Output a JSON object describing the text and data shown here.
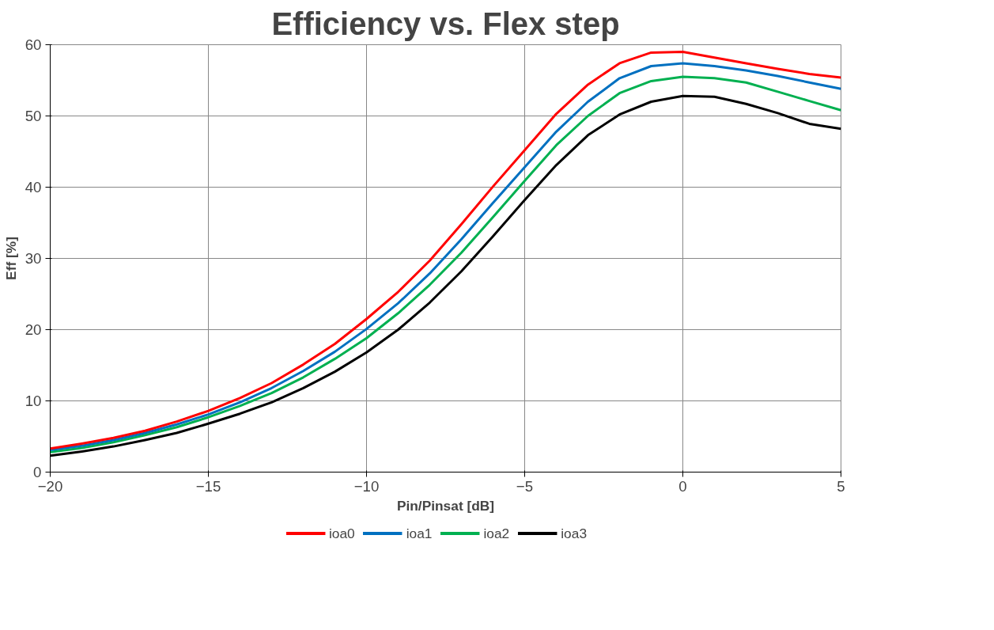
{
  "chart_data": {
    "type": "line",
    "title": "Efficiency vs. Flex step",
    "xlabel": "Pin/Pinsat [dB]",
    "ylabel": "Eff [%]",
    "x": [
      -20,
      -19,
      -18,
      -17,
      -16,
      -15,
      -14,
      -13,
      -12,
      -11,
      -10,
      -9,
      -8,
      -7,
      -6,
      -5,
      -4,
      -3,
      -2,
      -1,
      0,
      1,
      2,
      3,
      4,
      5
    ],
    "series": [
      {
        "name": "ioa0",
        "color": "#ff0000",
        "values": [
          3.3,
          4.0,
          4.8,
          5.8,
          7.1,
          8.6,
          10.4,
          12.5,
          15.1,
          18.0,
          21.5,
          25.3,
          29.7,
          34.8,
          40.1,
          45.2,
          50.3,
          54.4,
          57.4,
          58.9,
          59.0,
          58.2,
          57.4,
          56.6,
          55.9,
          55.4
        ]
      },
      {
        "name": "ioa1",
        "color": "#0070c0",
        "values": [
          3.1,
          3.7,
          4.5,
          5.5,
          6.7,
          8.1,
          9.8,
          11.8,
          14.2,
          16.9,
          20.1,
          23.7,
          27.9,
          32.7,
          37.8,
          42.8,
          47.8,
          52.0,
          55.3,
          57.0,
          57.4,
          57.0,
          56.4,
          55.6,
          54.7,
          53.8
        ]
      },
      {
        "name": "ioa2",
        "color": "#00b050",
        "values": [
          2.8,
          3.4,
          4.2,
          5.2,
          6.3,
          7.7,
          9.3,
          11.1,
          13.3,
          15.9,
          18.8,
          22.3,
          26.3,
          30.8,
          35.8,
          40.9,
          45.9,
          50.0,
          53.2,
          54.9,
          55.5,
          55.3,
          54.7,
          53.4,
          52.1,
          50.8
        ]
      },
      {
        "name": "ioa3",
        "color": "#000000",
        "values": [
          2.3,
          2.9,
          3.6,
          4.5,
          5.5,
          6.8,
          8.2,
          9.8,
          11.8,
          14.1,
          16.8,
          20.0,
          23.8,
          28.2,
          33.1,
          38.2,
          43.1,
          47.3,
          50.2,
          52.0,
          52.8,
          52.7,
          51.7,
          50.4,
          48.9,
          48.2
        ]
      }
    ],
    "xlim": [
      -20,
      5
    ],
    "xticks": [
      -20,
      -15,
      -10,
      -5,
      0,
      5
    ],
    "ylim": [
      0,
      60
    ],
    "yticks": [
      0,
      10,
      20,
      30,
      40,
      50,
      60
    ],
    "grid": true,
    "legend": "bottom",
    "marker": "none",
    "line_style": "solid"
  }
}
